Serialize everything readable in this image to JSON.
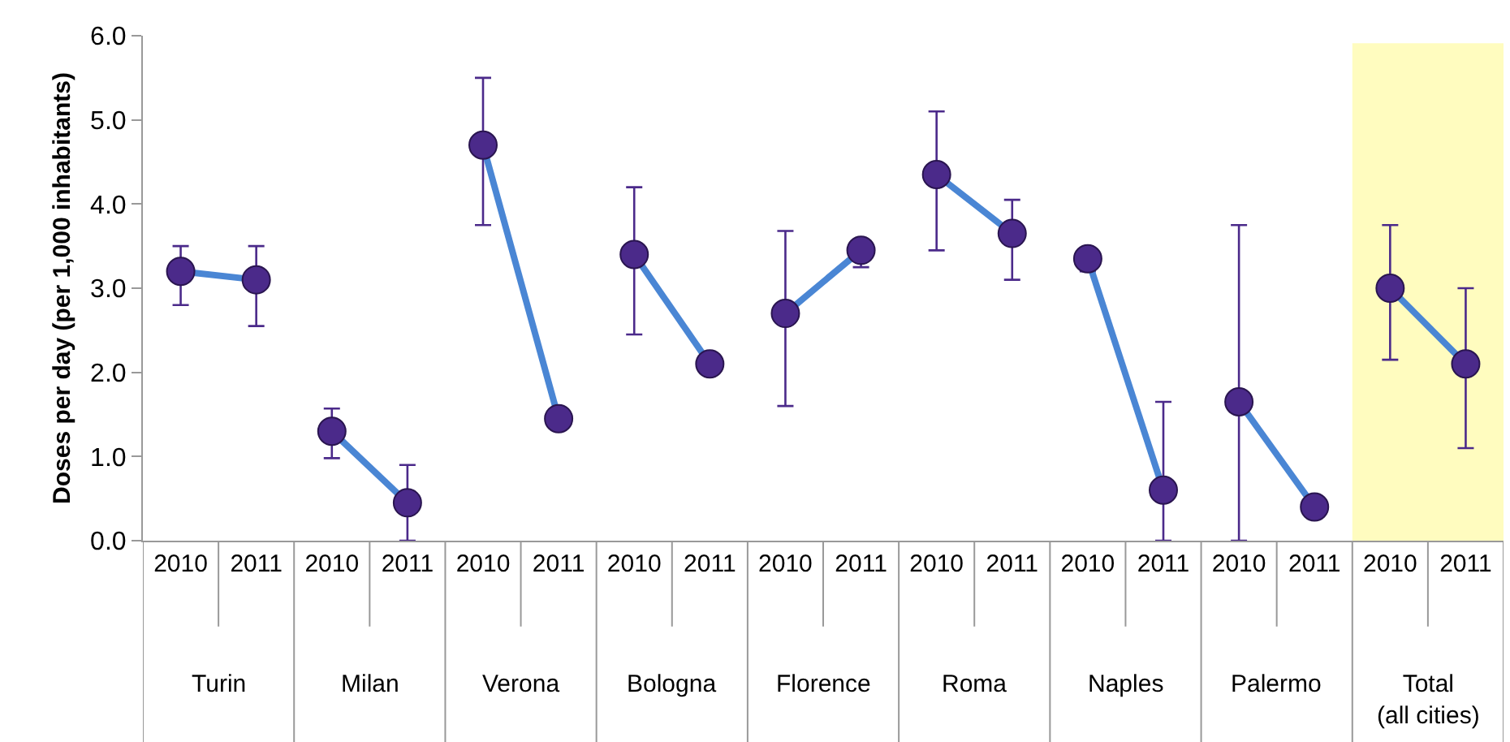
{
  "chart_data": {
    "type": "line",
    "ylabel": "Doses per day (per 1,000 inhabitants)",
    "categories": [
      "2010",
      "2011",
      "2010",
      "2011",
      "2010",
      "2011",
      "2010",
      "2011",
      "2010",
      "2011",
      "2010",
      "2011",
      "2010",
      "2011",
      "2010",
      "2011",
      "2010",
      "2011"
    ],
    "annotations": [
      "Turin",
      "Milan",
      "Verona",
      "Bologna",
      "Florence",
      "Roma",
      "Naples",
      "Palermo",
      "Total\n(all cities)"
    ],
    "ylim": [
      0,
      6
    ],
    "yticks": [
      {
        "value": 0,
        "label": "0.0"
      },
      {
        "value": 1,
        "label": "1.0"
      },
      {
        "value": 2,
        "label": "2.0"
      },
      {
        "value": 3,
        "label": "3.0"
      },
      {
        "value": 4,
        "label": "4.0"
      },
      {
        "value": 5,
        "label": "5.0"
      },
      {
        "value": 6,
        "label": "6.0"
      }
    ],
    "marker": "circle",
    "line_style": "solid",
    "grid": false,
    "series": [
      {
        "color": "#4a86d4",
        "colors": [
          "#4b2a8a",
          "#4b2a8a",
          null,
          null,
          null,
          null,
          null,
          null,
          null,
          null,
          null,
          null,
          null,
          null,
          null,
          null,
          null,
          null
        ],
        "values": [
          3.2,
          3.1,
          null,
          null,
          null,
          null,
          null,
          null,
          null,
          null,
          null,
          null,
          null,
          null,
          null,
          null,
          null,
          null
        ],
        "errors": [
          [
            2.8,
            3.5
          ],
          [
            2.55,
            3.5
          ],
          null,
          null,
          null,
          null,
          null,
          null,
          null,
          null,
          null,
          null,
          null,
          null,
          null,
          null,
          null,
          null
        ]
      },
      {
        "color": "#4a86d4",
        "colors": [
          null,
          null,
          "#4b2a8a",
          "#4b2a8a",
          null,
          null,
          null,
          null,
          null,
          null,
          null,
          null,
          null,
          null,
          null,
          null,
          null,
          null
        ],
        "values": [
          null,
          null,
          1.3,
          0.45,
          null,
          null,
          null,
          null,
          null,
          null,
          null,
          null,
          null,
          null,
          null,
          null,
          null,
          null
        ],
        "errors": [
          null,
          null,
          [
            0.98,
            1.57
          ],
          [
            0,
            0.9
          ],
          null,
          null,
          null,
          null,
          null,
          null,
          null,
          null,
          null,
          null,
          null,
          null,
          null,
          null
        ]
      },
      {
        "color": "#4a86d4",
        "colors": [
          null,
          null,
          null,
          null,
          "#4b2a8a",
          "#4b2a8a",
          null,
          null,
          null,
          null,
          null,
          null,
          null,
          null,
          null,
          null,
          null,
          null
        ],
        "values": [
          null,
          null,
          null,
          null,
          4.7,
          1.45,
          null,
          null,
          null,
          null,
          null,
          null,
          null,
          null,
          null,
          null,
          null,
          null
        ],
        "errors": [
          null,
          null,
          null,
          null,
          [
            3.75,
            5.5
          ],
          null,
          null,
          null,
          null,
          null,
          null,
          null,
          null,
          null,
          null,
          null,
          null,
          null
        ]
      },
      {
        "color": "#4a86d4",
        "colors": [
          null,
          null,
          null,
          null,
          null,
          null,
          "#4b2a8a",
          "#4b2a8a",
          null,
          null,
          null,
          null,
          null,
          null,
          null,
          null,
          null,
          null
        ],
        "values": [
          null,
          null,
          null,
          null,
          null,
          null,
          3.4,
          2.1,
          null,
          null,
          null,
          null,
          null,
          null,
          null,
          null,
          null,
          null
        ],
        "errors": [
          null,
          null,
          null,
          null,
          null,
          null,
          [
            2.45,
            4.2
          ],
          null,
          null,
          null,
          null,
          null,
          null,
          null,
          null,
          null,
          null,
          null
        ]
      },
      {
        "color": "#4a86d4",
        "colors": [
          null,
          null,
          null,
          null,
          null,
          null,
          null,
          null,
          "#4b2a8a",
          "#4b2a8a",
          null,
          null,
          null,
          null,
          null,
          null,
          null,
          null
        ],
        "values": [
          null,
          null,
          null,
          null,
          null,
          null,
          null,
          null,
          2.7,
          3.45,
          null,
          null,
          null,
          null,
          null,
          null,
          null,
          null
        ],
        "errors": [
          null,
          null,
          null,
          null,
          null,
          null,
          null,
          null,
          [
            1.6,
            3.68
          ],
          [
            3.25,
            3.45
          ],
          null,
          null,
          null,
          null,
          null,
          null,
          null,
          null
        ]
      },
      {
        "color": "#4a86d4",
        "colors": [
          null,
          null,
          null,
          null,
          null,
          null,
          null,
          null,
          null,
          null,
          "#4b2a8a",
          "#4b2a8a",
          null,
          null,
          null,
          null,
          null,
          null
        ],
        "values": [
          null,
          null,
          null,
          null,
          null,
          null,
          null,
          null,
          null,
          null,
          4.35,
          3.65,
          null,
          null,
          null,
          null,
          null,
          null
        ],
        "errors": [
          null,
          null,
          null,
          null,
          null,
          null,
          null,
          null,
          null,
          null,
          [
            3.45,
            5.1
          ],
          [
            3.1,
            4.05
          ],
          null,
          null,
          null,
          null,
          null,
          null
        ]
      },
      {
        "color": "#4a86d4",
        "colors": [
          null,
          null,
          null,
          null,
          null,
          null,
          null,
          null,
          null,
          null,
          null,
          null,
          "#4b2a8a",
          "#4b2a8a",
          null,
          null,
          null,
          null
        ],
        "values": [
          null,
          null,
          null,
          null,
          null,
          null,
          null,
          null,
          null,
          null,
          null,
          null,
          3.35,
          0.6,
          null,
          null,
          null,
          null
        ],
        "errors": [
          null,
          null,
          null,
          null,
          null,
          null,
          null,
          null,
          null,
          null,
          null,
          null,
          [
            3.2,
            3.35
          ],
          [
            0,
            1.65
          ],
          null,
          null,
          null,
          null
        ]
      },
      {
        "color": "#4a86d4",
        "colors": [
          null,
          null,
          null,
          null,
          null,
          null,
          null,
          null,
          null,
          null,
          null,
          null,
          null,
          null,
          "#4b2a8a",
          "#4b2a8a",
          null,
          null
        ],
        "values": [
          null,
          null,
          null,
          null,
          null,
          null,
          null,
          null,
          null,
          null,
          null,
          null,
          null,
          null,
          1.65,
          0.4,
          null,
          null
        ],
        "errors": [
          null,
          null,
          null,
          null,
          null,
          null,
          null,
          null,
          null,
          null,
          null,
          null,
          null,
          null,
          [
            0,
            3.75
          ],
          null,
          null,
          null
        ]
      },
      {
        "color": "#4a86d4",
        "colors": [
          null,
          null,
          null,
          null,
          null,
          null,
          null,
          null,
          null,
          null,
          null,
          null,
          null,
          null,
          null,
          null,
          "#4b2a8a",
          "#4b2a8a"
        ],
        "values": [
          null,
          null,
          null,
          null,
          null,
          null,
          null,
          null,
          null,
          null,
          null,
          null,
          null,
          null,
          null,
          null,
          3.0,
          2.1
        ],
        "errors": [
          null,
          null,
          null,
          null,
          null,
          null,
          null,
          null,
          null,
          null,
          null,
          null,
          null,
          null,
          null,
          null,
          [
            2.15,
            3.75
          ],
          [
            1.1,
            3.0
          ]
        ]
      }
    ]
  }
}
